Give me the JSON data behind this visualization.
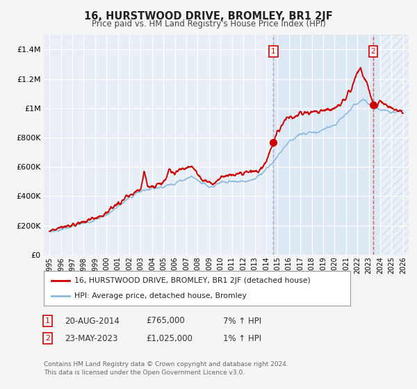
{
  "title": "16, HURSTWOOD DRIVE, BROMLEY, BR1 2JF",
  "subtitle": "Price paid vs. HM Land Registry's House Price Index (HPI)",
  "background_color": "#f5f5f5",
  "plot_bg_color": "#e8eef5",
  "grid_color": "#ffffff",
  "hpi_color": "#88bbdd",
  "price_color": "#cc0000",
  "sale_dot_color": "#cc0000",
  "vline1_color": "#9999cc",
  "vline2_color": "#cc4444",
  "shade_color": "#dde8f5",
  "hatch_color": "#cccccc",
  "sale1_date": 2014.64,
  "sale1_price": 765000,
  "sale2_date": 2023.39,
  "sale2_price": 1025000,
  "legend_line1": "16, HURSTWOOD DRIVE, BROMLEY, BR1 2JF (detached house)",
  "legend_line2": "HPI: Average price, detached house, Bromley",
  "sale1_date_str": "20-AUG-2014",
  "sale1_price_str": "£765,000",
  "sale1_hpi_str": "7% ↑ HPI",
  "sale2_date_str": "23-MAY-2023",
  "sale2_price_str": "£1,025,000",
  "sale2_hpi_str": "1% ↑ HPI",
  "footer": "Contains HM Land Registry data © Crown copyright and database right 2024.\nThis data is licensed under the Open Government Licence v3.0.",
  "ylim": [
    0,
    1500000
  ],
  "xlim_start": 1994.5,
  "xlim_end": 2026.5,
  "yticks": [
    0,
    200000,
    400000,
    600000,
    800000,
    1000000,
    1200000,
    1400000
  ],
  "ytick_labels": [
    "£0",
    "£200K",
    "£400K",
    "£600K",
    "£800K",
    "£1M",
    "£1.2M",
    "£1.4M"
  ],
  "xticks": [
    1995,
    1996,
    1997,
    1998,
    1999,
    2000,
    2001,
    2002,
    2003,
    2004,
    2005,
    2006,
    2007,
    2008,
    2009,
    2010,
    2011,
    2012,
    2013,
    2014,
    2015,
    2016,
    2017,
    2018,
    2019,
    2020,
    2021,
    2022,
    2023,
    2024,
    2025,
    2026
  ],
  "hatch_start": 2024.0
}
